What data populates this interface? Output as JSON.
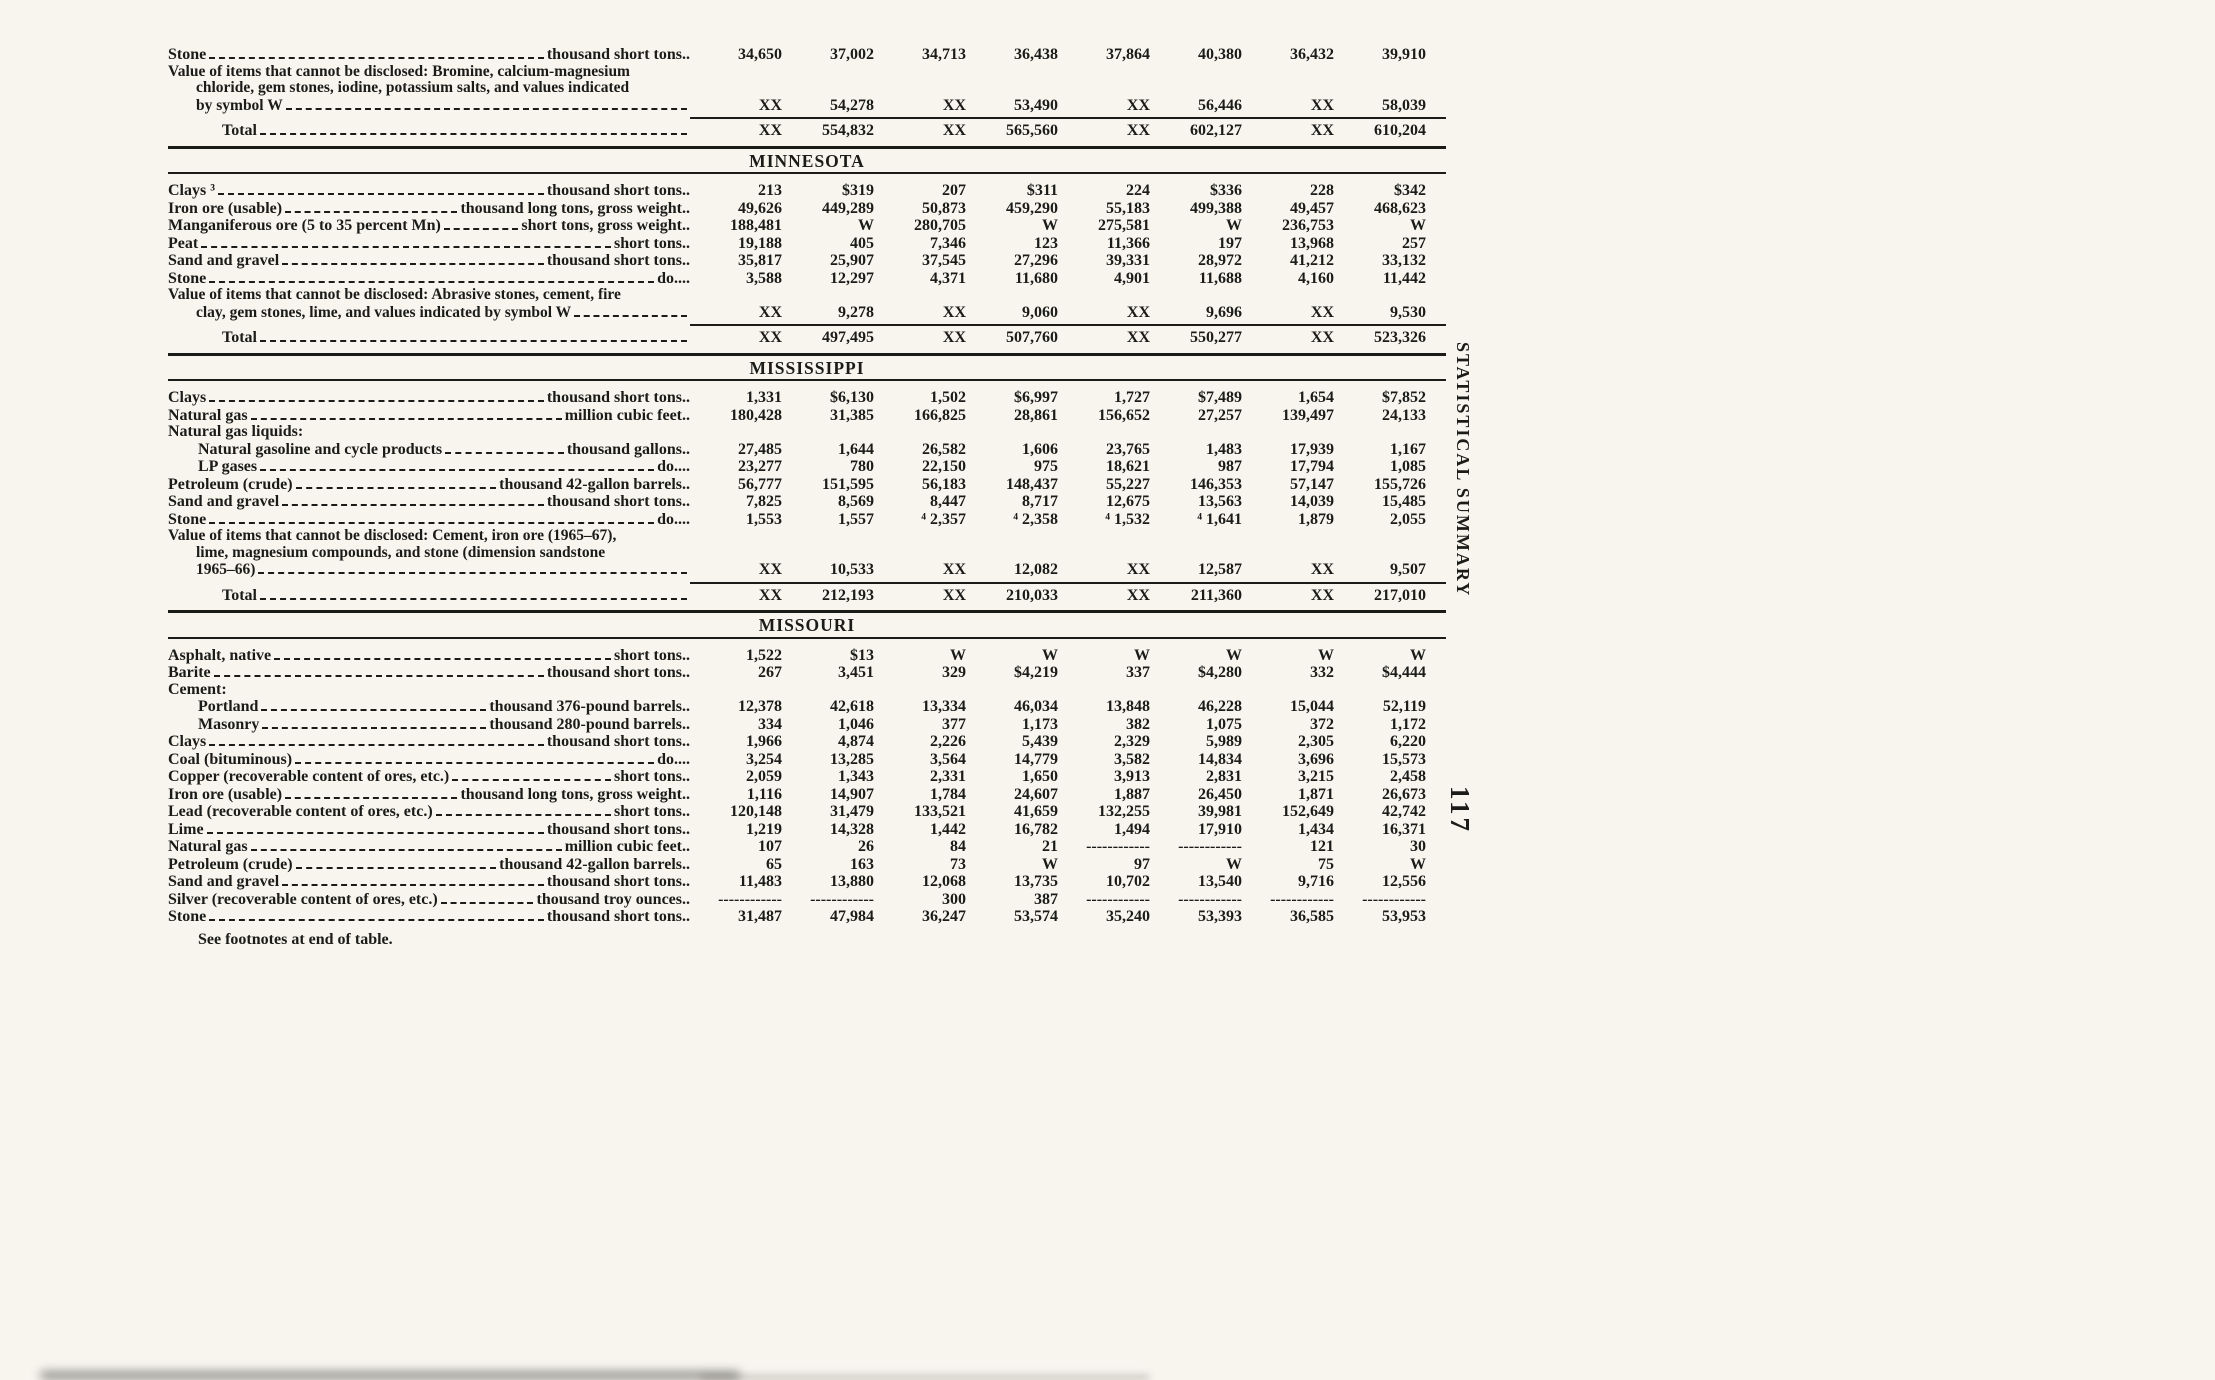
{
  "page": {
    "side_label": "STATISTICAL SUMMARY",
    "page_number": "117",
    "footnote": "See footnotes at end of table."
  },
  "table": {
    "sections": [
      {
        "state": null,
        "rows": [
          {
            "type": "data",
            "label": "Stone",
            "unit": "thousand short tons..",
            "values": [
              "34,650",
              "37,002",
              "34,713",
              "36,438",
              "37,864",
              "40,380",
              "36,432",
              "39,910"
            ]
          },
          {
            "type": "wrap",
            "lines": [
              "Value of items that cannot be disclosed: Bromine, calcium-magnesium",
              "chloride, gem stones, iodine, potassium salts, and values indicated",
              "by symbol W"
            ],
            "values": [
              "XX",
              "54,278",
              "XX",
              "53,490",
              "XX",
              "56,446",
              "XX",
              "58,039"
            ]
          },
          {
            "type": "total",
            "label": "Total",
            "values": [
              "XX",
              "554,832",
              "XX",
              "565,560",
              "XX",
              "602,127",
              "XX",
              "610,204"
            ]
          }
        ]
      },
      {
        "state": "MINNESOTA",
        "rows": [
          {
            "type": "data",
            "label": "Clays ³",
            "unit": "thousand short tons..",
            "values": [
              "213",
              "$319",
              "207",
              "$311",
              "224",
              "$336",
              "228",
              "$342"
            ]
          },
          {
            "type": "data",
            "label": "Iron ore (usable)",
            "unit": "thousand long tons, gross weight..",
            "values": [
              "49,626",
              "449,289",
              "50,873",
              "459,290",
              "55,183",
              "499,388",
              "49,457",
              "468,623"
            ]
          },
          {
            "type": "data",
            "label": "Manganiferous ore (5 to 35 percent Mn)",
            "unit": "short tons, gross weight..",
            "values": [
              "188,481",
              "W",
              "280,705",
              "W",
              "275,581",
              "W",
              "236,753",
              "W"
            ]
          },
          {
            "type": "data",
            "label": "Peat",
            "unit": "short tons..",
            "values": [
              "19,188",
              "405",
              "7,346",
              "123",
              "11,366",
              "197",
              "13,968",
              "257"
            ]
          },
          {
            "type": "data",
            "label": "Sand and gravel",
            "unit": "thousand short tons..",
            "values": [
              "35,817",
              "25,907",
              "37,545",
              "27,296",
              "39,331",
              "28,972",
              "41,212",
              "33,132"
            ]
          },
          {
            "type": "data",
            "label": "Stone",
            "unit": "do....",
            "values": [
              "3,588",
              "12,297",
              "4,371",
              "11,680",
              "4,901",
              "11,688",
              "4,160",
              "11,442"
            ]
          },
          {
            "type": "wrap",
            "lines": [
              "Value of items that cannot be disclosed: Abrasive stones, cement, fire",
              "clay, gem stones, lime, and values indicated by symbol W"
            ],
            "values": [
              "XX",
              "9,278",
              "XX",
              "9,060",
              "XX",
              "9,696",
              "XX",
              "9,530"
            ]
          },
          {
            "type": "total",
            "label": "Total",
            "values": [
              "XX",
              "497,495",
              "XX",
              "507,760",
              "XX",
              "550,277",
              "XX",
              "523,326"
            ]
          }
        ]
      },
      {
        "state": "MISSISSIPPI",
        "rows": [
          {
            "type": "data",
            "label": "Clays",
            "unit": "thousand short tons..",
            "values": [
              "1,331",
              "$6,130",
              "1,502",
              "$6,997",
              "1,727",
              "$7,489",
              "1,654",
              "$7,852"
            ]
          },
          {
            "type": "data",
            "label": "Natural gas",
            "unit": "million cubic feet..",
            "values": [
              "180,428",
              "31,385",
              "166,825",
              "28,861",
              "156,652",
              "27,257",
              "139,497",
              "24,133"
            ]
          },
          {
            "type": "group",
            "label": "Natural gas liquids:"
          },
          {
            "type": "data",
            "indent": 1,
            "label": "Natural gasoline and cycle products",
            "unit": "thousand gallons..",
            "values": [
              "27,485",
              "1,644",
              "26,582",
              "1,606",
              "23,765",
              "1,483",
              "17,939",
              "1,167"
            ]
          },
          {
            "type": "data",
            "indent": 1,
            "label": "LP gases",
            "unit": "do....",
            "values": [
              "23,277",
              "780",
              "22,150",
              "975",
              "18,621",
              "987",
              "17,794",
              "1,085"
            ]
          },
          {
            "type": "data",
            "label": "Petroleum (crude)",
            "unit": "thousand 42-gallon barrels..",
            "values": [
              "56,777",
              "151,595",
              "56,183",
              "148,437",
              "55,227",
              "146,353",
              "57,147",
              "155,726"
            ]
          },
          {
            "type": "data",
            "label": "Sand and gravel",
            "unit": "thousand short tons..",
            "values": [
              "7,825",
              "8,569",
              "8,447",
              "8,717",
              "12,675",
              "13,563",
              "14,039",
              "15,485"
            ]
          },
          {
            "type": "data",
            "label": "Stone",
            "unit": "do....",
            "values": [
              "1,553",
              "1,557",
              "⁴ 2,357",
              "⁴ 2,358",
              "⁴ 1,532",
              "⁴ 1,641",
              "1,879",
              "2,055"
            ]
          },
          {
            "type": "wrap",
            "lines": [
              "Value of items that cannot be disclosed: Cement, iron ore (1965–67),",
              "lime, magnesium compounds, and stone (dimension sandstone",
              "1965–66)"
            ],
            "values": [
              "XX",
              "10,533",
              "XX",
              "12,082",
              "XX",
              "12,587",
              "XX",
              "9,507"
            ]
          },
          {
            "type": "total",
            "label": "Total",
            "values": [
              "XX",
              "212,193",
              "XX",
              "210,033",
              "XX",
              "211,360",
              "XX",
              "217,010"
            ]
          }
        ]
      },
      {
        "state": "MISSOURI",
        "rows": [
          {
            "type": "data",
            "label": "Asphalt, native",
            "unit": "short tons..",
            "values": [
              "1,522",
              "$13",
              "W",
              "W",
              "W",
              "W",
              "W",
              "W"
            ]
          },
          {
            "type": "data",
            "label": "Barite",
            "unit": "thousand short tons..",
            "values": [
              "267",
              "3,451",
              "329",
              "$4,219",
              "337",
              "$4,280",
              "332",
              "$4,444"
            ]
          },
          {
            "type": "group",
            "label": "Cement:"
          },
          {
            "type": "data",
            "indent": 1,
            "label": "Portland",
            "unit": "thousand 376-pound barrels..",
            "values": [
              "12,378",
              "42,618",
              "13,334",
              "46,034",
              "13,848",
              "46,228",
              "15,044",
              "52,119"
            ]
          },
          {
            "type": "data",
            "indent": 1,
            "label": "Masonry",
            "unit": "thousand 280-pound barrels..",
            "values": [
              "334",
              "1,046",
              "377",
              "1,173",
              "382",
              "1,075",
              "372",
              "1,172"
            ]
          },
          {
            "type": "data",
            "label": "Clays",
            "unit": "thousand short tons..",
            "values": [
              "1,966",
              "4,874",
              "2,226",
              "5,439",
              "2,329",
              "5,989",
              "2,305",
              "6,220"
            ]
          },
          {
            "type": "data",
            "label": "Coal (bituminous)",
            "unit": "do....",
            "values": [
              "3,254",
              "13,285",
              "3,564",
              "14,779",
              "3,582",
              "14,834",
              "3,696",
              "15,573"
            ]
          },
          {
            "type": "data",
            "label": "Copper (recoverable content of ores, etc.)",
            "unit": "short tons..",
            "values": [
              "2,059",
              "1,343",
              "2,331",
              "1,650",
              "3,913",
              "2,831",
              "3,215",
              "2,458"
            ]
          },
          {
            "type": "data",
            "label": "Iron ore (usable)",
            "unit": "thousand long tons, gross weight..",
            "values": [
              "1,116",
              "14,907",
              "1,784",
              "24,607",
              "1,887",
              "26,450",
              "1,871",
              "26,673"
            ]
          },
          {
            "type": "data",
            "label": "Lead (recoverable content of ores, etc.)",
            "unit": "short tons..",
            "values": [
              "120,148",
              "31,479",
              "133,521",
              "41,659",
              "132,255",
              "39,981",
              "152,649",
              "42,742"
            ]
          },
          {
            "type": "data",
            "label": "Lime",
            "unit": "thousand short tons..",
            "values": [
              "1,219",
              "14,328",
              "1,442",
              "16,782",
              "1,494",
              "17,910",
              "1,434",
              "16,371"
            ]
          },
          {
            "type": "data",
            "label": "Natural gas",
            "unit": "million cubic feet..",
            "values": [
              "107",
              "26",
              "84",
              "21",
              "------------",
              "------------",
              "121",
              "30"
            ]
          },
          {
            "type": "data",
            "label": "Petroleum (crude)",
            "unit": "thousand 42-gallon barrels..",
            "values": [
              "65",
              "163",
              "73",
              "W",
              "97",
              "W",
              "75",
              "W"
            ]
          },
          {
            "type": "data",
            "label": "Sand and gravel",
            "unit": "thousand short tons..",
            "values": [
              "11,483",
              "13,880",
              "12,068",
              "13,735",
              "10,702",
              "13,540",
              "9,716",
              "12,556"
            ]
          },
          {
            "type": "data",
            "label": "Silver (recoverable content of ores, etc.)",
            "unit": "thousand troy ounces..",
            "values": [
              "------------",
              "------------",
              "300",
              "387",
              "------------",
              "------------",
              "------------",
              "------------"
            ]
          },
          {
            "type": "data",
            "label": "Stone",
            "unit": "thousand short tons..",
            "values": [
              "31,487",
              "47,984",
              "36,247",
              "53,574",
              "35,240",
              "53,393",
              "36,585",
              "53,953"
            ]
          }
        ]
      }
    ]
  }
}
